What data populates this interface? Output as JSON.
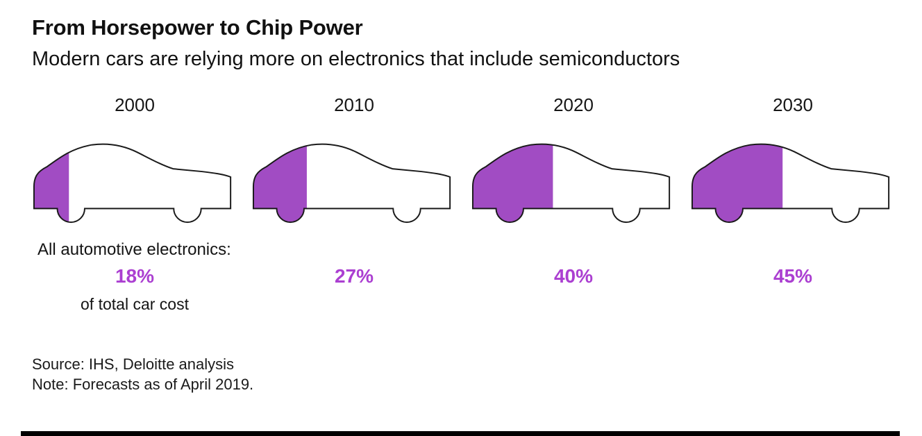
{
  "header": {
    "title": "From Horsepower to Chip Power",
    "subtitle": "Modern cars are relying more on electronics that include semiconductors"
  },
  "chart_data": {
    "type": "pictogram-bar",
    "title": "From Horsepower to Chip Power",
    "subtitle": "Modern cars are relying more on electronics that include semiconductors",
    "categories": [
      "2000",
      "2010",
      "2020",
      "2030"
    ],
    "values": [
      18,
      27,
      40,
      45
    ],
    "unit": "% of total car cost",
    "series_label": "All automotive electronics",
    "ylim": [
      0,
      100
    ],
    "cars": [
      {
        "year": "2000",
        "value": 18,
        "pct_label": "18%"
      },
      {
        "year": "2010",
        "value": 27,
        "pct_label": "27%"
      },
      {
        "year": "2020",
        "value": 40,
        "pct_label": "40%"
      },
      {
        "year": "2030",
        "value": 45,
        "pct_label": "45%"
      }
    ]
  },
  "labels": {
    "electronics_label": "All automotive electronics:",
    "cost_label": "of total car cost"
  },
  "footer": {
    "source": "Source: IHS, Deloitte analysis",
    "note": "Note: Forecasts as of April 2019."
  },
  "colors": {
    "purple_fill": "#a14cc3",
    "purple_text": "#ab3fd1",
    "outline": "#1a1a1a",
    "background": "#ffffff",
    "bar": "#000000"
  }
}
